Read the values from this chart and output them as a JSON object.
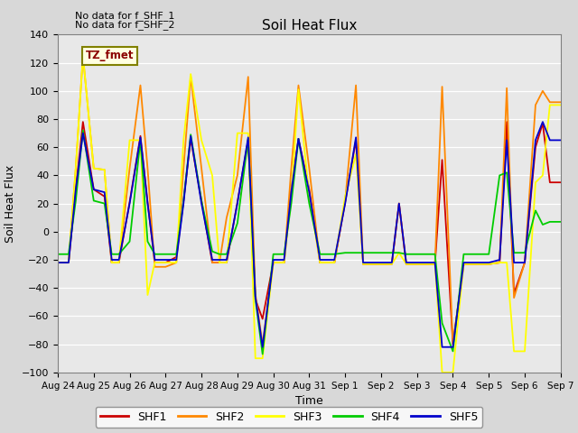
{
  "title": "Soil Heat Flux",
  "xlabel": "Time",
  "ylabel": "Soil Heat Flux",
  "annotations": [
    "No data for f_SHF_1",
    "No data for f_SHF_2"
  ],
  "tz_label": "TZ_fmet",
  "ylim": [
    -100,
    140
  ],
  "yticks": [
    -100,
    -80,
    -60,
    -40,
    -20,
    0,
    20,
    40,
    60,
    80,
    100,
    120,
    140
  ],
  "xtick_labels": [
    "Aug 24",
    "Aug 25",
    "Aug 26",
    "Aug 27",
    "Aug 28",
    "Aug 29",
    "Aug 30",
    "Aug 31",
    "Sep 1",
    "Sep 2",
    "Sep 3",
    "Sep 4",
    "Sep 5",
    "Sep 6",
    "Sep 7"
  ],
  "colors": {
    "SHF1": "#cc0000",
    "SHF2": "#ff8800",
    "SHF3": "#ffff00",
    "SHF4": "#00cc00",
    "SHF5": "#0000cc"
  },
  "background_color": "#d8d8d8",
  "plot_bg_color": "#e8e8e8",
  "n_days": 14,
  "SHF1_x": [
    0,
    0.3,
    0.5,
    0.7,
    1.0,
    1.3,
    1.5,
    1.7,
    2.0,
    2.3,
    2.5,
    2.7,
    3.0,
    3.3,
    3.5,
    3.7,
    4.0,
    4.3,
    4.5,
    4.7,
    5.0,
    5.3,
    5.5,
    5.7,
    6.0,
    6.3,
    6.5,
    6.7,
    7.0,
    7.3,
    7.5,
    7.7,
    8.0,
    8.3,
    8.5,
    8.7,
    9.0,
    9.3,
    9.5,
    9.7,
    10.0,
    10.3,
    10.5,
    10.7,
    11.0,
    11.3,
    11.5,
    11.7,
    12.0,
    12.3,
    12.5,
    12.7,
    13.0,
    13.3,
    13.5,
    13.7,
    14.0
  ],
  "SHF1_y": [
    -22,
    -22,
    30,
    78,
    30,
    25,
    -22,
    -22,
    21,
    68,
    21,
    -22,
    -22,
    -18,
    22,
    66,
    22,
    -22,
    -22,
    -22,
    21,
    65,
    -48,
    -62,
    -22,
    -22,
    30,
    66,
    30,
    -22,
    -22,
    -22,
    21,
    65,
    -23,
    -23,
    -23,
    -23,
    20,
    -23,
    -23,
    -23,
    -23,
    51,
    -80,
    -23,
    -23,
    -23,
    -23,
    -22,
    78,
    -44,
    -22,
    60,
    77,
    35,
    35
  ],
  "SHF2_y": [
    -22,
    -22,
    45,
    125,
    45,
    44,
    -22,
    -22,
    45,
    104,
    45,
    -25,
    -25,
    -22,
    45,
    110,
    45,
    -22,
    -22,
    10,
    40,
    110,
    -44,
    -80,
    -22,
    -22,
    45,
    104,
    45,
    -22,
    -22,
    -22,
    22,
    104,
    -23,
    -23,
    -23,
    -23,
    20,
    -23,
    -23,
    -23,
    -23,
    103,
    -80,
    -23,
    -23,
    -23,
    -23,
    -22,
    102,
    -47,
    -22,
    90,
    100,
    92,
    92
  ],
  "SHF3_y": [
    -22,
    -22,
    45,
    125,
    45,
    44,
    -22,
    -22,
    65,
    65,
    -45,
    -22,
    -22,
    -22,
    65,
    112,
    65,
    40,
    -22,
    -22,
    70,
    70,
    -90,
    -90,
    -22,
    -22,
    25,
    101,
    25,
    -22,
    -22,
    -22,
    25,
    55,
    -23,
    -23,
    -23,
    -23,
    -15,
    -23,
    -23,
    -23,
    -23,
    -100,
    -100,
    -23,
    -23,
    -23,
    -23,
    -22,
    -22,
    -85,
    -85,
    35,
    40,
    90,
    90
  ],
  "SHF4_y": [
    -16,
    -16,
    22,
    72,
    22,
    20,
    -16,
    -16,
    -7,
    65,
    -7,
    -16,
    -16,
    -16,
    22,
    69,
    22,
    -14,
    -16,
    -16,
    6,
    66,
    -48,
    -87,
    -16,
    -16,
    20,
    66,
    20,
    -16,
    -16,
    -16,
    -15,
    -15,
    -15,
    -15,
    -15,
    -15,
    -15,
    -16,
    -16,
    -16,
    -16,
    -65,
    -85,
    -16,
    -16,
    -16,
    -16,
    40,
    42,
    -15,
    -15,
    15,
    5,
    7,
    7
  ],
  "SHF5_y": [
    -22,
    -22,
    30,
    70,
    30,
    28,
    -20,
    -20,
    20,
    67,
    20,
    -20,
    -20,
    -20,
    20,
    68,
    20,
    -20,
    -20,
    -20,
    20,
    67,
    -46,
    -82,
    -20,
    -20,
    28,
    66,
    28,
    -20,
    -20,
    -20,
    20,
    67,
    -22,
    -22,
    -22,
    -22,
    20,
    -22,
    -22,
    -22,
    -22,
    -82,
    -82,
    -22,
    -22,
    -22,
    -22,
    -20,
    65,
    -22,
    -22,
    65,
    78,
    65,
    65
  ]
}
